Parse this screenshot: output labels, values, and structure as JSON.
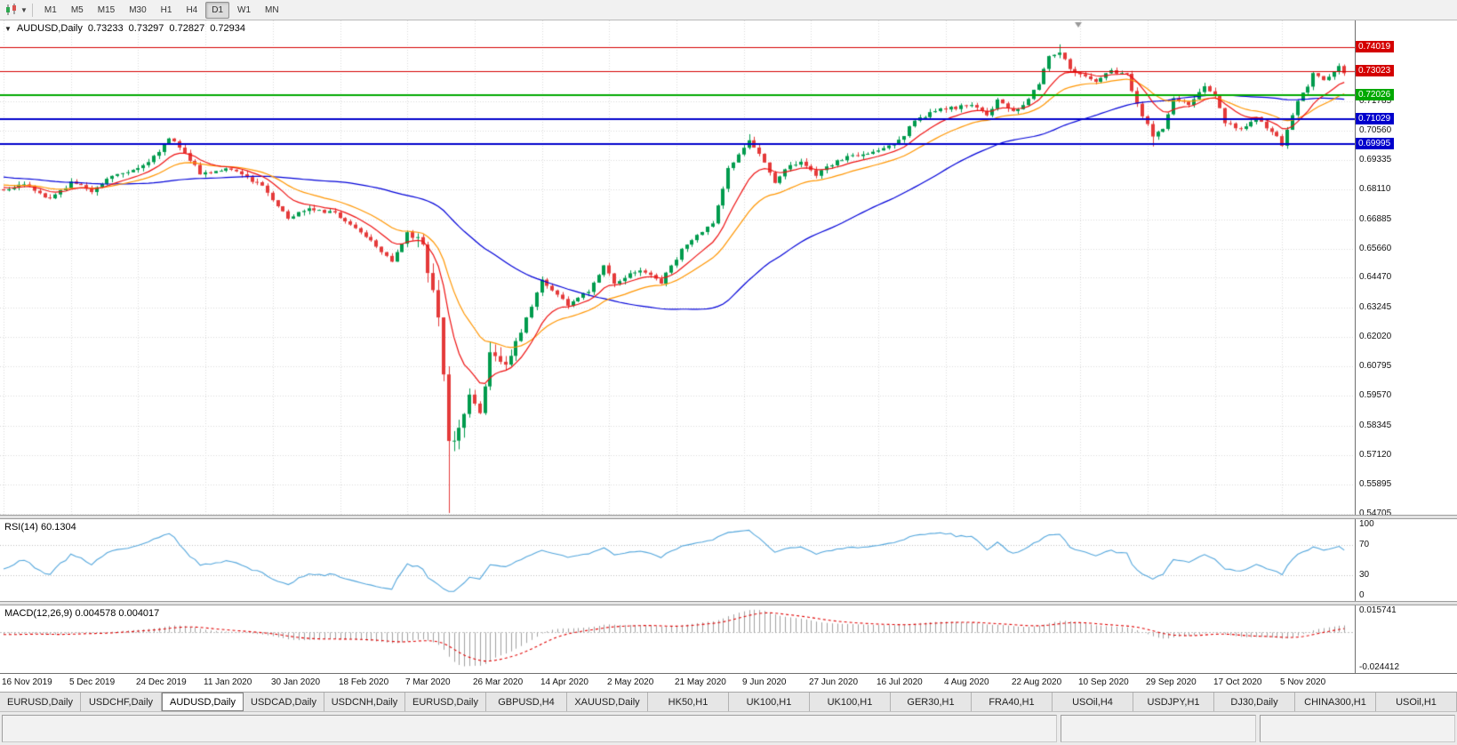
{
  "toolbar": {
    "timeframes": [
      "M1",
      "M5",
      "M15",
      "M30",
      "H1",
      "H4",
      "D1",
      "W1",
      "MN"
    ],
    "active_timeframe": "D1"
  },
  "chart": {
    "header": {
      "symbol": "AUDUSD,Daily",
      "open": "0.73233",
      "high": "0.73297",
      "low": "0.72827",
      "close": "0.72934"
    }
  },
  "indicators": {
    "rsi": {
      "label": "RSI(14) 60.1304"
    },
    "macd": {
      "label": "MACD(12,26,9) 0.004578 0.004017"
    }
  },
  "bottom_tabs": {
    "active_index": 2,
    "tabs": [
      "EURUSD,Daily",
      "USDCHF,Daily",
      "AUDUSD,Daily",
      "USDCAD,Daily",
      "USDCNH,Daily",
      "EURUSD,Daily",
      "GBPUSD,H4",
      "XAUUSD,Daily",
      "HK50,H1",
      "UK100,H1",
      "UK100,H1",
      "GER30,H1",
      "FRA40,H1",
      "USOil,H4",
      "USDJPY,H1",
      "DJ30,Daily",
      "CHINA300,H1",
      "USOil,H1"
    ],
    "active_label": "AUDUSD,Daily"
  },
  "chart_data": {
    "type": "candlestick",
    "symbol": "AUDUSD",
    "period": "Daily",
    "ohlc_current": {
      "open": 0.73233,
      "high": 0.73297,
      "low": 0.72827,
      "close": 0.72934
    },
    "ylim": [
      0.5465,
      0.7512
    ],
    "price_axis_labels": [
      "0.71785",
      "0.70560",
      "0.69335",
      "0.68110",
      "0.66885",
      "0.65660",
      "0.64470",
      "0.63245",
      "0.62020",
      "0.60795",
      "0.59570",
      "0.58345",
      "0.57120",
      "0.55895",
      "0.54705"
    ],
    "hlines": [
      {
        "value": 0.74019,
        "label": "0.74019",
        "color": "#d40000",
        "width": 1
      },
      {
        "value": 0.73023,
        "label": "0.73023",
        "color": "#d40000",
        "width": 1
      },
      {
        "value": 0.72026,
        "label": "0.72026",
        "color": "#00a800",
        "width": 2
      },
      {
        "value": 0.71029,
        "label": "0.71029",
        "color": "#0000cc",
        "width": 2
      },
      {
        "value": 0.69995,
        "label": "0.69995",
        "color": "#0000cc",
        "width": 2
      }
    ],
    "x_labels": [
      "16 Nov 2019",
      "5 Dec 2019",
      "24 Dec 2019",
      "11 Jan 2020",
      "30 Jan 2020",
      "18 Feb 2020",
      "7 Mar 2020",
      "26 Mar 2020",
      "14 Apr 2020",
      "2 May 2020",
      "21 May 2020",
      "9 Jun 2020",
      "27 Jun 2020",
      "16 Jul 2020",
      "4 Aug 2020",
      "22 Aug 2020",
      "10 Sep 2020",
      "29 Sep 2020",
      "17 Oct 2020",
      "5 Nov 2020"
    ],
    "bars_per_label": 13,
    "bars": 260,
    "up_color": "#009b4d",
    "down_color": "#e43a3a",
    "anchors": [
      [
        0,
        0.6815
      ],
      [
        4,
        0.6833
      ],
      [
        9,
        0.677
      ],
      [
        13,
        0.6842
      ],
      [
        17,
        0.6808
      ],
      [
        21,
        0.6872
      ],
      [
        26,
        0.6902
      ],
      [
        30,
        0.6962
      ],
      [
        32,
        0.7028
      ],
      [
        34,
        0.6992
      ],
      [
        38,
        0.6878
      ],
      [
        43,
        0.6898
      ],
      [
        47,
        0.6862
      ],
      [
        50,
        0.6828
      ],
      [
        55,
        0.6692
      ],
      [
        59,
        0.6738
      ],
      [
        64,
        0.6712
      ],
      [
        70,
        0.6622
      ],
      [
        75,
        0.6518
      ],
      [
        78,
        0.6628
      ],
      [
        81,
        0.6588
      ],
      [
        82,
        0.648
      ],
      [
        83,
        0.6385
      ],
      [
        84,
        0.628
      ],
      [
        85,
        0.604
      ],
      [
        86,
        0.5758
      ],
      [
        88,
        0.5812
      ],
      [
        90,
        0.5962
      ],
      [
        92,
        0.5885
      ],
      [
        94,
        0.6132
      ],
      [
        97,
        0.6082
      ],
      [
        99,
        0.6172
      ],
      [
        104,
        0.6438
      ],
      [
        109,
        0.6335
      ],
      [
        113,
        0.6392
      ],
      [
        116,
        0.6502
      ],
      [
        118,
        0.6428
      ],
      [
        123,
        0.6482
      ],
      [
        127,
        0.6428
      ],
      [
        131,
        0.6562
      ],
      [
        135,
        0.6638
      ],
      [
        137,
        0.6668
      ],
      [
        140,
        0.6898
      ],
      [
        144,
        0.7012
      ],
      [
        146,
        0.6962
      ],
      [
        149,
        0.6832
      ],
      [
        151,
        0.6902
      ],
      [
        154,
        0.6932
      ],
      [
        157,
        0.6865
      ],
      [
        159,
        0.6905
      ],
      [
        163,
        0.6948
      ],
      [
        167,
        0.6958
      ],
      [
        171,
        0.6988
      ],
      [
        174,
        0.7038
      ],
      [
        176,
        0.7102
      ],
      [
        182,
        0.7148
      ],
      [
        187,
        0.7158
      ],
      [
        190,
        0.7122
      ],
      [
        192,
        0.7178
      ],
      [
        195,
        0.7138
      ],
      [
        197,
        0.7162
      ],
      [
        200,
        0.7252
      ],
      [
        202,
        0.7368
      ],
      [
        204,
        0.7382
      ],
      [
        206,
        0.7312
      ],
      [
        208,
        0.7282
      ],
      [
        211,
        0.7258
      ],
      [
        214,
        0.7302
      ],
      [
        217,
        0.7292
      ],
      [
        219,
        0.7162
      ],
      [
        222,
        0.7038
      ],
      [
        224,
        0.7062
      ],
      [
        226,
        0.7188
      ],
      [
        229,
        0.7162
      ],
      [
        232,
        0.7242
      ],
      [
        234,
        0.7198
      ],
      [
        236,
        0.7092
      ],
      [
        239,
        0.7058
      ],
      [
        242,
        0.7118
      ],
      [
        244,
        0.7062
      ],
      [
        246,
        0.7028
      ],
      [
        247,
        0.6998
      ],
      [
        248,
        0.7058
      ],
      [
        250,
        0.7178
      ],
      [
        252,
        0.7242
      ],
      [
        253,
        0.7288
      ],
      [
        255,
        0.7262
      ],
      [
        257,
        0.7302
      ],
      [
        258,
        0.7323
      ],
      [
        259,
        0.72934
      ]
    ],
    "special_bars": {
      "86": {
        "low": 0.5472
      },
      "144": {
        "high": 0.7041
      },
      "204": {
        "high": 0.7413
      },
      "222": {
        "low": 0.699
      },
      "247": {
        "low": 0.6988
      }
    },
    "moving_averages": [
      {
        "type": "sma",
        "period": 55,
        "color": "#0000d8"
      },
      {
        "type": "ema",
        "period": 21,
        "color": "#ff9500"
      },
      {
        "type": "ema",
        "period": 10,
        "color": "#ee1111"
      }
    ],
    "rsi": {
      "period": 14,
      "current": 60.1304,
      "range": [
        0,
        100
      ],
      "levels": [
        70,
        30
      ],
      "axis_labels": [
        "100",
        "70",
        "30",
        "0"
      ],
      "color": "#53a6dc"
    },
    "macd": {
      "fast": 12,
      "slow": 26,
      "signal_period": 9,
      "current_macd": 0.004578,
      "current_signal": 0.004017,
      "range": [
        -0.024412,
        0.015741
      ],
      "axis_labels": [
        "0.015741",
        "-0.024412"
      ],
      "histogram_color": "#a0a0a0",
      "signal_color": "#e00000"
    }
  }
}
